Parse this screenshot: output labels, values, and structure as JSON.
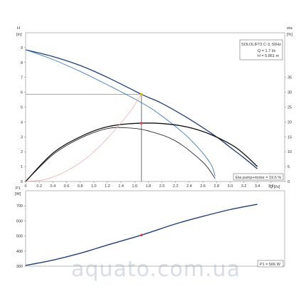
{
  "watermark": "aquato.com.ua",
  "info_box": {
    "model": "SOLOLIFT2 C-3, 50Hz",
    "q_line": "Q = 1.7 l/s",
    "h_line": "H = 5.861 m"
  },
  "eta_label": "Eta pump+motor = 19.6 %",
  "p1_label": "P1 = 506 W",
  "colors": {
    "curve_dark_blue": "#1f3f7a",
    "curve_light_blue": "#3b7ec2",
    "curve_black": "#111111",
    "curve_pink": "#f2a3a3",
    "duty_marker": "#e53935",
    "op_marker": "#f4b400",
    "grid": "#bbbbbb"
  },
  "chart_data": [
    {
      "type": "line",
      "name": "head-efficiency",
      "xlabel": "Q [l/s]",
      "ylabel_left": "H [m]",
      "ylabel_right": "eta [%]",
      "xlim": [
        0,
        3.8
      ],
      "ylim_left": [
        0,
        10
      ],
      "ylim_right": [
        0,
        50
      ],
      "x_ticks": [
        "0",
        "0.2",
        "0.4",
        "0.6",
        "0.8",
        "1.0",
        "1.2",
        "1.4",
        "1.6",
        "1.8",
        "2.0",
        "2.2",
        "2.4",
        "2.6",
        "2.8",
        "3.0",
        "3.2",
        "3.4",
        "3.6"
      ],
      "x_tick_values": [
        0,
        0.2,
        0.4,
        0.6,
        0.8,
        1.0,
        1.2,
        1.4,
        1.6,
        1.8,
        2.0,
        2.2,
        2.4,
        2.6,
        2.8,
        3.0,
        3.2,
        3.4,
        3.6
      ],
      "y_left_ticks": [
        "0",
        "1",
        "2",
        "3",
        "4",
        "5",
        "6",
        "7",
        "8",
        "9"
      ],
      "y_left_tick_values": [
        0,
        1,
        2,
        3,
        4,
        5,
        6,
        7,
        8,
        9
      ],
      "y_right_ticks": [
        "0",
        "5",
        "10",
        "15",
        "20",
        "25",
        "30",
        "35"
      ],
      "y_right_tick_values": [
        0,
        5,
        10,
        15,
        20,
        25,
        30,
        35
      ],
      "grid": false,
      "series": [
        {
          "key": "head_max",
          "axis": "left",
          "color": "#1f3f7a",
          "x": [
            0,
            0.4,
            0.8,
            1.2,
            1.7,
            2.0,
            2.4,
            2.8,
            3.0,
            3.2,
            3.4
          ],
          "y": [
            8.85,
            8.4,
            7.8,
            7.0,
            5.86,
            5.25,
            4.2,
            3.0,
            2.3,
            1.6,
            0.85
          ]
        },
        {
          "key": "head_system",
          "axis": "left",
          "color": "#3b7ec2",
          "x": [
            0,
            0.4,
            0.8,
            1.2,
            1.7,
            2.0,
            2.4,
            2.7,
            2.78
          ],
          "y": [
            8.85,
            8.2,
            7.4,
            6.5,
            5.3,
            4.4,
            2.9,
            1.3,
            0.35
          ]
        },
        {
          "key": "eta_max",
          "axis": "right",
          "color": "#111111",
          "x": [
            0,
            0.4,
            0.8,
            1.2,
            1.7,
            2.2,
            2.6,
            3.0,
            3.2,
            3.4
          ],
          "y": [
            0,
            9.5,
            15.0,
            18.4,
            19.6,
            19.0,
            16.8,
            12.6,
            9.3,
            5.0
          ]
        },
        {
          "key": "eta_system",
          "axis": "right",
          "color": "#111111",
          "x": [
            0,
            0.4,
            0.8,
            1.2,
            1.5,
            1.8,
            2.2,
            2.6,
            2.78
          ],
          "y": [
            0,
            9.0,
            14.5,
            17.8,
            18.0,
            17.0,
            13.6,
            6.5,
            1.0
          ]
        },
        {
          "key": "system_curve",
          "axis": "left",
          "color": "#f2a3a3",
          "x": [
            0,
            0.3,
            0.6,
            0.9,
            1.2,
            1.5,
            1.7
          ],
          "y": [
            0,
            0.15,
            0.7,
            1.6,
            2.9,
            4.5,
            5.86
          ]
        }
      ],
      "duty_point": {
        "q": 1.7,
        "h": 5.861,
        "eta": 19.6
      }
    },
    {
      "type": "line",
      "name": "power",
      "xlabel": "",
      "ylabel": "P1 [W]",
      "xlim": [
        0,
        3.8
      ],
      "ylim": [
        300,
        800
      ],
      "y_ticks": [
        "300",
        "400",
        "500",
        "600",
        "700"
      ],
      "y_tick_values": [
        300,
        400,
        500,
        600,
        700
      ],
      "grid": false,
      "series": [
        {
          "key": "p1",
          "color": "#1f3f7a",
          "x": [
            0,
            0.4,
            0.8,
            1.2,
            1.7,
            2.2,
            2.6,
            3.0,
            3.4
          ],
          "y": [
            305,
            340,
            385,
            440,
            506,
            580,
            630,
            675,
            710
          ]
        }
      ],
      "duty_point": {
        "q": 1.7,
        "p1": 506
      }
    }
  ]
}
